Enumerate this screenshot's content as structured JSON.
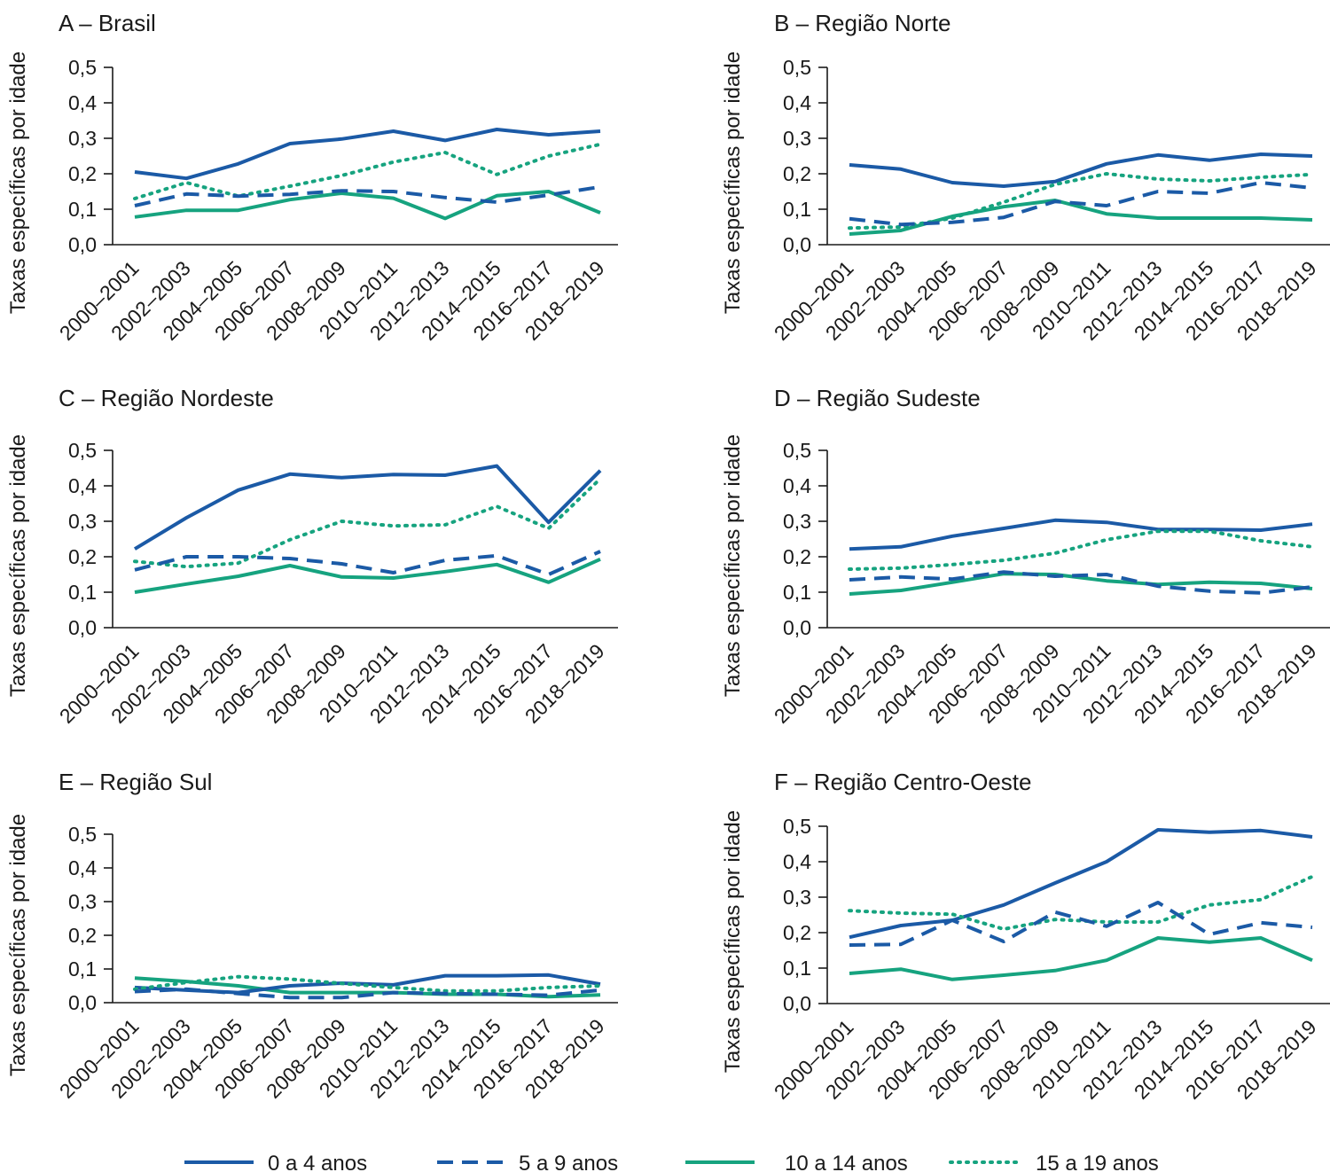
{
  "colors": {
    "age_0_4": "#1b5aa6",
    "age_5_9": "#1b5aa6",
    "age_10_14": "#16a37f",
    "age_15_19": "#16a37f",
    "axis": "#1a1a1a"
  },
  "legend": [
    {
      "key": "age_0_4",
      "label": "0 a 4 anos",
      "style": "solid"
    },
    {
      "key": "age_5_9",
      "label": "5 a 9 anos",
      "style": "dashed"
    },
    {
      "key": "age_10_14",
      "label": "10 a 14 anos",
      "style": "solid"
    },
    {
      "key": "age_15_19",
      "label": "15 a 19 anos",
      "style": "dotted"
    }
  ],
  "chart_data": [
    {
      "type": "line",
      "title": "A – Brasil",
      "ylabel": "Taxas específicas por idade",
      "ylim": [
        0,
        0.5
      ],
      "yticks": [
        "0,0",
        "0,1",
        "0,2",
        "0,3",
        "0,4",
        "0,5"
      ],
      "categories": [
        "2000–2001",
        "2002–2003",
        "2004–2005",
        "2006–2007",
        "2008–2009",
        "2010–2011",
        "2012–2013",
        "2014–2015",
        "2016–2017",
        "2018–2019"
      ],
      "series": [
        {
          "name": "0 a 4 anos",
          "key": "age_0_4",
          "values": [
            0.205,
            0.187,
            0.228,
            0.285,
            0.298,
            0.32,
            0.294,
            0.325,
            0.31,
            0.32
          ]
        },
        {
          "name": "5 a 9 anos",
          "key": "age_5_9",
          "values": [
            0.11,
            0.143,
            0.137,
            0.142,
            0.152,
            0.15,
            0.133,
            0.12,
            0.14,
            0.163
          ]
        },
        {
          "name": "10 a 14 anos",
          "key": "age_10_14",
          "values": [
            0.078,
            0.097,
            0.097,
            0.127,
            0.145,
            0.131,
            0.074,
            0.138,
            0.15,
            0.09
          ]
        },
        {
          "name": "15 a 19 anos",
          "key": "age_15_19",
          "values": [
            0.13,
            0.175,
            0.137,
            0.165,
            0.195,
            0.233,
            0.26,
            0.198,
            0.25,
            0.283
          ]
        }
      ]
    },
    {
      "type": "line",
      "title": "B – Região Norte",
      "ylabel": "Taxas específicas por idade",
      "ylim": [
        0,
        0.5
      ],
      "yticks": [
        "0,0",
        "0,1",
        "0,2",
        "0,3",
        "0,4",
        "0,5"
      ],
      "categories": [
        "2000–2001",
        "2002–2003",
        "2004–2005",
        "2006–2007",
        "2008–2009",
        "2010–2011",
        "2012–2013",
        "2014–2015",
        "2016–2017",
        "2018–2019"
      ],
      "series": [
        {
          "name": "0 a 4 anos",
          "key": "age_0_4",
          "values": [
            0.225,
            0.213,
            0.175,
            0.165,
            0.178,
            0.228,
            0.253,
            0.238,
            0.255,
            0.25
          ]
        },
        {
          "name": "5 a 9 anos",
          "key": "age_5_9",
          "values": [
            0.073,
            0.057,
            0.063,
            0.077,
            0.122,
            0.11,
            0.15,
            0.145,
            0.175,
            0.16
          ]
        },
        {
          "name": "10 a 14 anos",
          "key": "age_10_14",
          "values": [
            0.03,
            0.04,
            0.08,
            0.107,
            0.125,
            0.087,
            0.075,
            0.075,
            0.075,
            0.07
          ]
        },
        {
          "name": "15 a 19 anos",
          "key": "age_15_19",
          "values": [
            0.047,
            0.05,
            0.075,
            0.12,
            0.17,
            0.2,
            0.185,
            0.18,
            0.19,
            0.198
          ]
        }
      ]
    },
    {
      "type": "line",
      "title": "C – Região Nordeste",
      "ylabel": "Taxas específicas por idade",
      "ylim": [
        0,
        0.5
      ],
      "yticks": [
        "0,0",
        "0,1",
        "0,2",
        "0,3",
        "0,4",
        "0,5"
      ],
      "categories": [
        "2000–2001",
        "2002–2003",
        "2004–2005",
        "2006–2007",
        "2008–2009",
        "2010–2011",
        "2012–2013",
        "2014–2015",
        "2016–2017",
        "2018–2019"
      ],
      "series": [
        {
          "name": "0 a 4 anos",
          "key": "age_0_4",
          "values": [
            0.222,
            0.31,
            0.388,
            0.433,
            0.423,
            0.432,
            0.43,
            0.456,
            0.297,
            0.443
          ]
        },
        {
          "name": "5 a 9 anos",
          "key": "age_5_9",
          "values": [
            0.163,
            0.2,
            0.2,
            0.195,
            0.18,
            0.155,
            0.19,
            0.203,
            0.15,
            0.215
          ]
        },
        {
          "name": "10 a 14 anos",
          "key": "age_10_14",
          "values": [
            0.1,
            0.123,
            0.145,
            0.175,
            0.143,
            0.14,
            0.158,
            0.178,
            0.128,
            0.193
          ]
        },
        {
          "name": "15 a 19 anos",
          "key": "age_15_19",
          "values": [
            0.187,
            0.172,
            0.182,
            0.248,
            0.3,
            0.287,
            0.29,
            0.342,
            0.28,
            0.42
          ]
        }
      ]
    },
    {
      "type": "line",
      "title": "D – Região Sudeste",
      "ylabel": "Taxas específicas por idade",
      "ylim": [
        0,
        0.5
      ],
      "yticks": [
        "0,0",
        "0,1",
        "0,2",
        "0,3",
        "0,4",
        "0,5"
      ],
      "categories": [
        "2000–2001",
        "2002–2003",
        "2004–2005",
        "2006–2007",
        "2008–2009",
        "2010–2011",
        "2012–2013",
        "2014–2015",
        "2016–2017",
        "2018–2019"
      ],
      "series": [
        {
          "name": "0 a 4 anos",
          "key": "age_0_4",
          "values": [
            0.222,
            0.228,
            0.258,
            0.28,
            0.303,
            0.297,
            0.277,
            0.277,
            0.275,
            0.292
          ]
        },
        {
          "name": "5 a 9 anos",
          "key": "age_5_9",
          "values": [
            0.135,
            0.143,
            0.137,
            0.157,
            0.145,
            0.15,
            0.117,
            0.103,
            0.098,
            0.115
          ]
        },
        {
          "name": "10 a 14 anos",
          "key": "age_10_14",
          "values": [
            0.095,
            0.105,
            0.128,
            0.152,
            0.15,
            0.132,
            0.122,
            0.128,
            0.125,
            0.11
          ]
        },
        {
          "name": "15 a 19 anos",
          "key": "age_15_19",
          "values": [
            0.165,
            0.168,
            0.178,
            0.19,
            0.21,
            0.248,
            0.272,
            0.272,
            0.245,
            0.228
          ]
        }
      ]
    },
    {
      "type": "line",
      "title": "E – Região Sul",
      "ylabel": "Taxas específicas por idade",
      "ylim": [
        0,
        0.5
      ],
      "yticks": [
        "0,0",
        "0,1",
        "0,2",
        "0,3",
        "0,4",
        "0,5"
      ],
      "categories": [
        "2000–2001",
        "2002–2003",
        "2004–2005",
        "2006–2007",
        "2008–2009",
        "2010–2011",
        "2012–2013",
        "2014–2015",
        "2016–2017",
        "2018–2019"
      ],
      "series": [
        {
          "name": "0 a 4 anos",
          "key": "age_0_4",
          "values": [
            0.045,
            0.037,
            0.03,
            0.05,
            0.058,
            0.053,
            0.08,
            0.08,
            0.082,
            0.055
          ]
        },
        {
          "name": "5 a 9 anos",
          "key": "age_5_9",
          "values": [
            0.033,
            0.04,
            0.027,
            0.015,
            0.015,
            0.03,
            0.027,
            0.025,
            0.022,
            0.037
          ]
        },
        {
          "name": "10 a 14 anos",
          "key": "age_10_14",
          "values": [
            0.073,
            0.063,
            0.05,
            0.03,
            0.03,
            0.03,
            0.025,
            0.025,
            0.018,
            0.023
          ]
        },
        {
          "name": "15 a 19 anos",
          "key": "age_15_19",
          "values": [
            0.04,
            0.06,
            0.077,
            0.07,
            0.057,
            0.045,
            0.035,
            0.035,
            0.045,
            0.05
          ]
        }
      ]
    },
    {
      "type": "line",
      "title": "F – Região Centro-Oeste",
      "ylabel": "Taxas específicas por idade",
      "ylim": [
        0,
        0.5
      ],
      "yticks": [
        "0,0",
        "0,1",
        "0,2",
        "0,3",
        "0,4",
        "0,5"
      ],
      "categories": [
        "2000–2001",
        "2002–2003",
        "2004–2005",
        "2006–2007",
        "2008–2009",
        "2010–2011",
        "2012–2013",
        "2014–2015",
        "2016–2017",
        "2018–2019"
      ],
      "series": [
        {
          "name": "0 a 4 anos",
          "key": "age_0_4",
          "values": [
            0.187,
            0.22,
            0.235,
            0.278,
            0.34,
            0.4,
            0.49,
            0.483,
            0.488,
            0.47
          ]
        },
        {
          "name": "5 a 9 anos",
          "key": "age_5_9",
          "values": [
            0.165,
            0.167,
            0.235,
            0.175,
            0.258,
            0.218,
            0.285,
            0.195,
            0.228,
            0.215
          ]
        },
        {
          "name": "10 a 14 anos",
          "key": "age_10_14",
          "values": [
            0.085,
            0.097,
            0.068,
            0.08,
            0.093,
            0.122,
            0.185,
            0.173,
            0.185,
            0.122
          ]
        },
        {
          "name": "15 a 19 anos",
          "key": "age_15_19",
          "values": [
            0.262,
            0.255,
            0.252,
            0.21,
            0.237,
            0.23,
            0.23,
            0.278,
            0.293,
            0.358
          ]
        }
      ]
    }
  ]
}
